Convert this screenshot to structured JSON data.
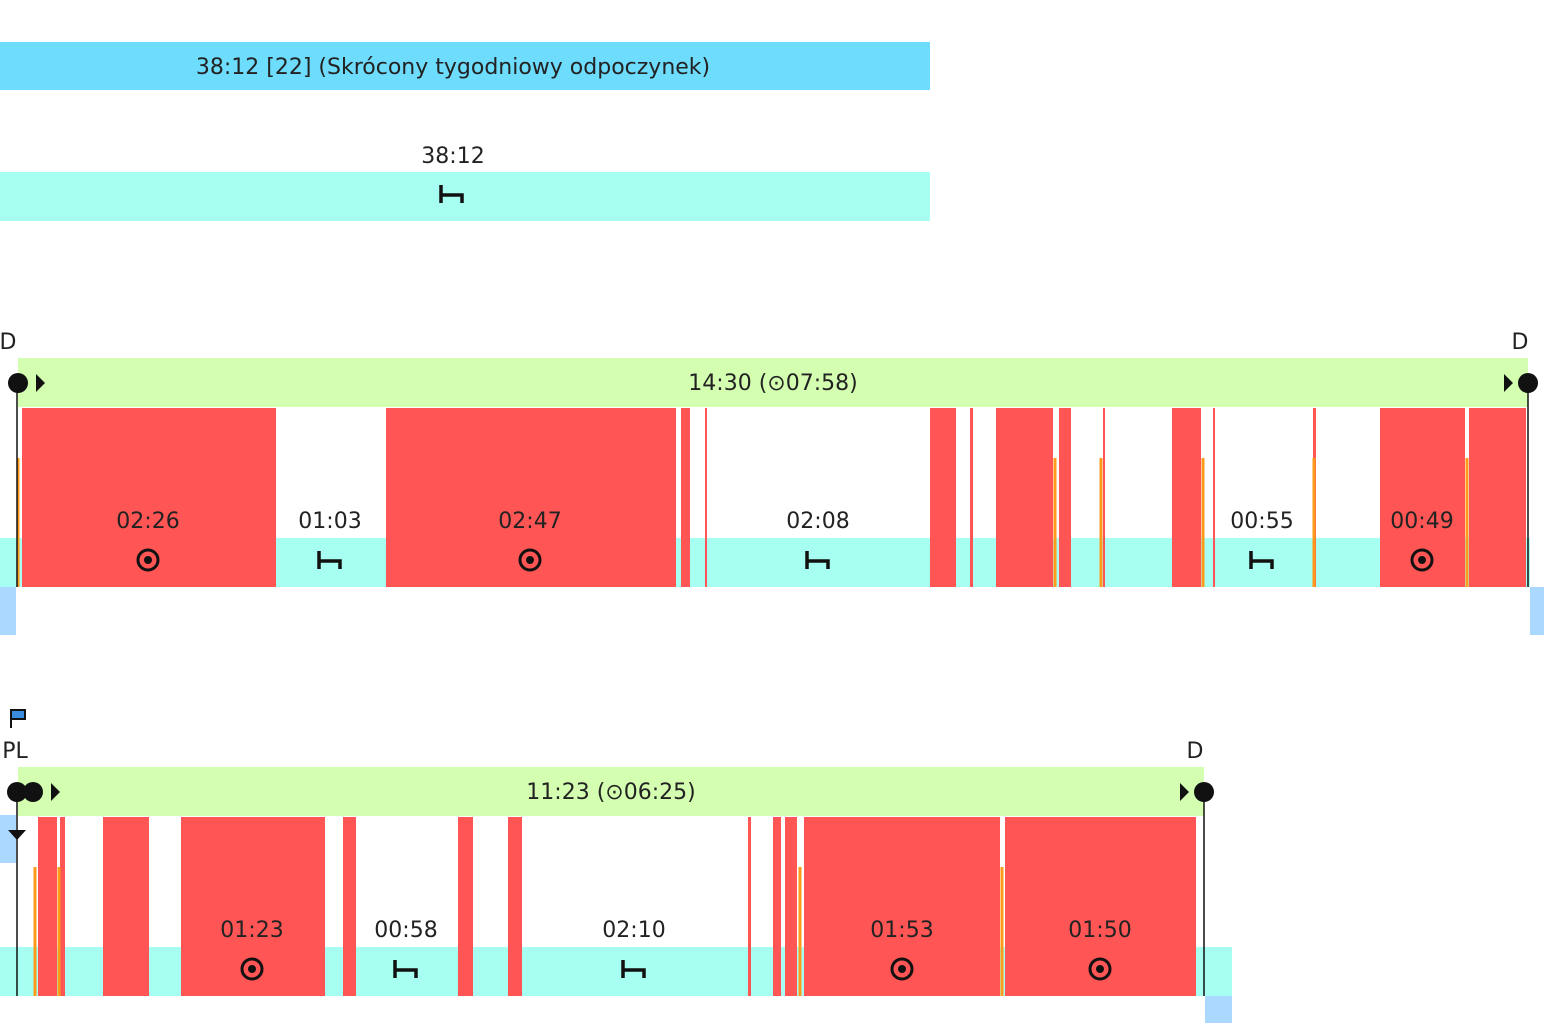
{
  "weekly_rest": {
    "label": "38:12 [22] (Skrócony tygodniowy odpoczynek)",
    "duration": "38:12"
  },
  "days": [
    {
      "start_marker": "D",
      "end_marker": "D",
      "summary": "14:30 (⊙07:58)",
      "segments": [
        "02:26",
        "01:03",
        "02:47",
        "02:08",
        "00:55",
        "00:49"
      ]
    },
    {
      "start_marker": "PL",
      "end_marker": "D",
      "summary": "11:23 (⊙06:25)",
      "segments": [
        "01:23",
        "00:58",
        "02:10",
        "01:53",
        "01:50"
      ]
    }
  ]
}
